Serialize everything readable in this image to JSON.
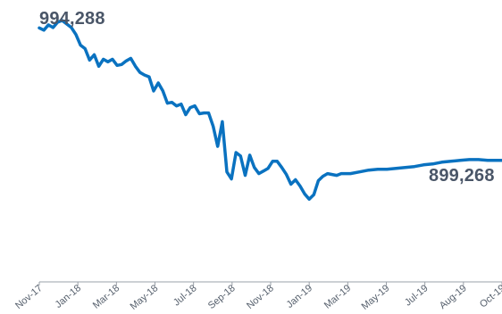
{
  "chart_data": {
    "type": "line",
    "title": "",
    "xlabel": "",
    "ylabel": "",
    "ylim": [
      850000,
      1000000
    ],
    "grid": false,
    "legend": "none",
    "colors": {
      "line": "#0a72c0",
      "axis": "#9aa0a8",
      "text": "#4a5668",
      "tick_text": "#555f6c"
    },
    "x_ticks": [
      "Nov-17",
      "Jan-18",
      "Mar-18",
      "May-18",
      "Jul-18",
      "Sep-18",
      "Nov-18",
      "Jan-19",
      "Mar-19",
      "May-19",
      "Jul-19",
      "Aug-19",
      "Oct-19"
    ],
    "annotations": {
      "start_value": "994,288",
      "end_value": "899,268"
    },
    "series": [
      {
        "x": [
          "2017-11-01",
          "2017-11-08",
          "2017-11-15",
          "2017-11-22",
          "2017-11-29",
          "2017-12-06",
          "2017-12-13",
          "2017-12-20",
          "2017-12-27",
          "2018-01-03",
          "2018-01-10",
          "2018-01-17",
          "2018-01-24",
          "2018-01-31",
          "2018-02-07",
          "2018-02-14",
          "2018-02-21",
          "2018-02-28",
          "2018-03-07",
          "2018-03-14",
          "2018-03-21",
          "2018-03-28",
          "2018-04-04",
          "2018-04-11",
          "2018-04-18",
          "2018-04-25",
          "2018-05-02",
          "2018-05-09",
          "2018-05-16",
          "2018-05-23",
          "2018-05-30",
          "2018-06-06",
          "2018-06-13",
          "2018-06-20",
          "2018-06-27",
          "2018-07-04",
          "2018-07-11",
          "2018-07-18",
          "2018-07-25",
          "2018-08-01",
          "2018-08-08",
          "2018-08-15",
          "2018-08-22",
          "2018-08-29",
          "2018-09-05",
          "2018-09-12",
          "2018-09-19",
          "2018-09-26",
          "2018-10-03",
          "2018-10-10",
          "2018-10-17",
          "2018-10-24",
          "2018-10-31",
          "2018-11-07",
          "2018-11-14",
          "2018-11-21",
          "2018-11-28",
          "2018-12-05",
          "2018-12-12",
          "2018-12-19",
          "2018-12-26",
          "2019-01-02",
          "2019-01-09",
          "2019-01-16",
          "2019-01-23",
          "2019-01-30",
          "2019-02-06",
          "2019-02-20",
          "2019-03-06",
          "2019-03-20",
          "2019-04-03",
          "2019-04-17",
          "2019-05-01",
          "2019-05-15",
          "2019-05-29",
          "2019-06-12",
          "2019-06-26",
          "2019-07-10",
          "2019-07-24",
          "2019-08-07",
          "2019-08-21",
          "2019-09-04",
          "2019-09-18",
          "2019-10-02",
          "2019-10-10"
        ],
        "values": [
          994288,
          993000,
          996000,
          994500,
          997500,
          998500,
          996500,
          994500,
          990500,
          984500,
          982500,
          976000,
          979000,
          972500,
          976500,
          975000,
          976500,
          973000,
          973500,
          975500,
          977000,
          972500,
          969000,
          967500,
          966500,
          958500,
          963000,
          958500,
          951500,
          952000,
          950000,
          951000,
          945000,
          949000,
          950000,
          945500,
          946000,
          946000,
          938500,
          927000,
          941000,
          912500,
          908500,
          923500,
          921500,
          910500,
          922000,
          915000,
          911500,
          913000,
          914500,
          918500,
          918500,
          915000,
          911000,
          905500,
          908000,
          904500,
          900000,
          897000,
          899500,
          907500,
          910000,
          911500,
          911000,
          910500,
          911500,
          911500,
          912500,
          913500,
          914000,
          914000,
          914500,
          915000,
          915500,
          916500,
          917000,
          918000,
          918500,
          919000,
          919500,
          919500,
          919000,
          919000,
          899268
        ]
      }
    ]
  }
}
